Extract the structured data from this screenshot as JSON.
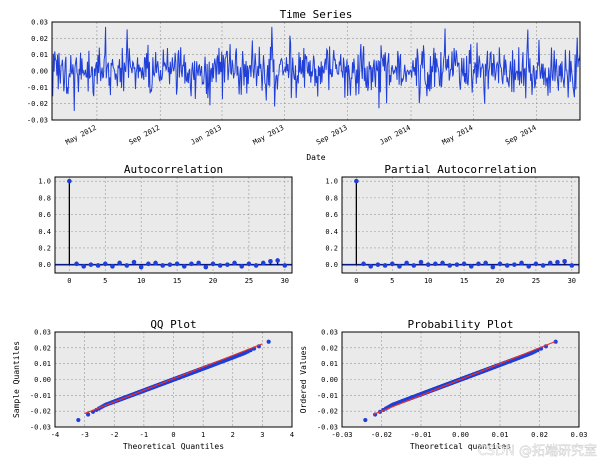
{
  "chart_data": [
    {
      "id": "timeseries",
      "type": "line",
      "title": "Time Series",
      "xlabel": "Date",
      "ylabel": "",
      "ylim": [
        -0.03,
        0.03
      ],
      "yticks": [
        "0.03",
        "0.02",
        "0.01",
        "0.00",
        "-0.01",
        "-0.02",
        "-0.03"
      ],
      "xticks": [
        "May 2012",
        "Sep 2012",
        "Jan 2013",
        "May 2013",
        "Sep 2013",
        "Jan 2014",
        "May 2014",
        "Sep 2014"
      ],
      "n_points": 760,
      "std": 0.0075,
      "grid": true,
      "color": "#1f3fd8"
    },
    {
      "id": "acf",
      "type": "stem",
      "title": "Autocorrelation",
      "xlim": [
        -2,
        31
      ],
      "ylim": [
        -0.1,
        1.05
      ],
      "xticks": [
        "0",
        "5",
        "10",
        "15",
        "20",
        "25",
        "30"
      ],
      "yticks": [
        "1.0",
        "0.8",
        "0.6",
        "0.4",
        "0.2",
        "0.0"
      ],
      "lags": [
        0,
        1,
        2,
        3,
        4,
        5,
        6,
        7,
        8,
        9,
        10,
        11,
        12,
        13,
        14,
        15,
        16,
        17,
        18,
        19,
        20,
        21,
        22,
        23,
        24,
        25,
        26,
        27,
        28,
        29,
        30
      ],
      "values": [
        1.0,
        0.01,
        -0.02,
        0.0,
        -0.01,
        0.01,
        -0.02,
        0.02,
        -0.01,
        0.03,
        -0.03,
        0.01,
        0.02,
        -0.01,
        0.0,
        0.01,
        -0.02,
        0.01,
        0.02,
        -0.03,
        0.01,
        -0.01,
        0.0,
        0.02,
        -0.02,
        0.01,
        -0.01,
        0.02,
        0.04,
        0.05,
        -0.01
      ],
      "grid": true
    },
    {
      "id": "pacf",
      "type": "stem",
      "title": "Partial Autocorrelation",
      "xlim": [
        -2,
        31
      ],
      "ylim": [
        -0.1,
        1.05
      ],
      "xticks": [
        "0",
        "5",
        "10",
        "15",
        "20",
        "25",
        "30"
      ],
      "yticks": [
        "1.0",
        "0.8",
        "0.6",
        "0.4",
        "0.2",
        "0.0"
      ],
      "lags": [
        0,
        1,
        2,
        3,
        4,
        5,
        6,
        7,
        8,
        9,
        10,
        11,
        12,
        13,
        14,
        15,
        16,
        17,
        18,
        19,
        20,
        21,
        22,
        23,
        24,
        25,
        26,
        27,
        28,
        29,
        30
      ],
      "values": [
        1.0,
        0.01,
        -0.02,
        0.0,
        -0.01,
        0.01,
        -0.02,
        0.02,
        -0.01,
        0.03,
        0.0,
        0.01,
        0.02,
        -0.01,
        0.0,
        0.01,
        -0.02,
        0.01,
        0.02,
        -0.03,
        0.01,
        -0.01,
        0.0,
        0.02,
        -0.02,
        0.01,
        -0.01,
        0.02,
        0.03,
        0.04,
        -0.01
      ],
      "grid": true
    },
    {
      "id": "qq",
      "type": "scatter",
      "title": "QQ Plot",
      "xlabel": "Theoretical Quantiles",
      "ylabel": "Sample Quantiles",
      "xlim": [
        -4,
        4
      ],
      "ylim": [
        -0.03,
        0.03
      ],
      "xticks": [
        "-4",
        "-3",
        "-2",
        "-1",
        "0",
        "1",
        "2",
        "3",
        "4"
      ],
      "yticks": [
        "0.03",
        "0.02",
        "0.01",
        "0.00",
        "-0.01",
        "-0.02",
        "-0.03"
      ],
      "fit_line": {
        "x": [
          -3,
          3
        ],
        "y": [
          -0.0215,
          0.0225
        ]
      },
      "n_points": 760,
      "grid": true
    },
    {
      "id": "prob",
      "type": "scatter",
      "title": "Probability Plot",
      "xlabel": "Theoretical quantiles",
      "ylabel": "Ordered Values",
      "xlim": [
        -0.03,
        0.03
      ],
      "ylim": [
        -0.03,
        0.03
      ],
      "xticks": [
        "-0.03",
        "-0.02",
        "-0.01",
        "0.00",
        "0.01",
        "0.02",
        "0.03"
      ],
      "yticks": [
        "0.03",
        "0.02",
        "0.01",
        "0.00",
        "-0.01",
        "-0.02",
        "-0.03"
      ],
      "fit_line": {
        "x": [
          -0.022,
          0.024
        ],
        "y": [
          -0.022,
          0.024
        ]
      },
      "n_points": 760,
      "grid": true
    }
  ],
  "colors": {
    "series": "#1f3fd8",
    "marker": "#1f3fd8",
    "stem": "#000000",
    "fit": "#e8312a",
    "panel_bg": "#eaeaea",
    "grid": "#999999"
  },
  "watermark": "CSDN @拓端研究室"
}
